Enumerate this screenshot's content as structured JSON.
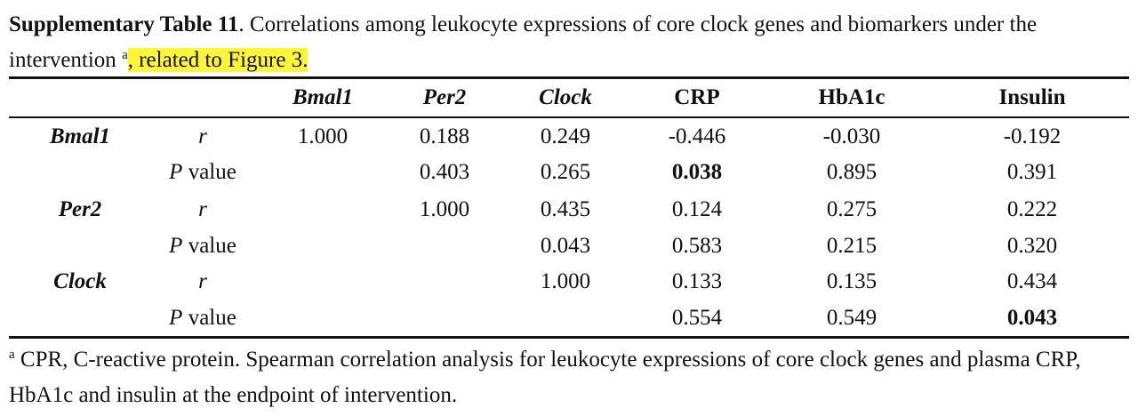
{
  "caption": {
    "label": "Supplementary Table 11",
    "text": ". Correlations among leukocyte expressions of core clock genes and biomarkers under the intervention ",
    "superscript": "a",
    "highlighted_text": ", related to Figure 3."
  },
  "table": {
    "columns": [
      "Bmal1",
      "Per2",
      "Clock",
      "CRP",
      "HbA1c",
      "Insulin"
    ],
    "row_groups": [
      {
        "gene": "Bmal1",
        "r_label": "r",
        "p_label_italic": "P",
        "p_label_rest": " value",
        "r_values": [
          "1.000",
          "0.188",
          "0.249",
          "-0.446",
          "-0.030",
          "-0.192"
        ],
        "p_values": [
          "",
          "0.403",
          "0.265",
          "0.038",
          "0.895",
          "0.391"
        ]
      },
      {
        "gene": "Per2",
        "r_label": "r",
        "p_label_italic": "P",
        "p_label_rest": " value",
        "r_values": [
          "",
          "1.000",
          "0.435",
          "0.124",
          "0.275",
          "0.222"
        ],
        "p_values": [
          "",
          "",
          "0.043",
          "0.583",
          "0.215",
          "0.320"
        ]
      },
      {
        "gene": "Clock",
        "r_label": "r",
        "p_label_italic": "P",
        "p_label_rest": " value",
        "r_values": [
          "",
          "",
          "1.000",
          "0.133",
          "0.135",
          "0.434"
        ],
        "p_values": [
          "",
          "",
          "",
          "0.554",
          "0.549",
          "0.043"
        ]
      }
    ],
    "bold_cells": [
      [
        0,
        3
      ],
      [
        2,
        5
      ]
    ]
  },
  "footnote": {
    "superscript": "a",
    "text": " CPR, C-reactive protein. Spearman correlation analysis for leukocyte expressions of core clock genes and plasma CRP, HbA1c and insulin at the endpoint of intervention."
  }
}
